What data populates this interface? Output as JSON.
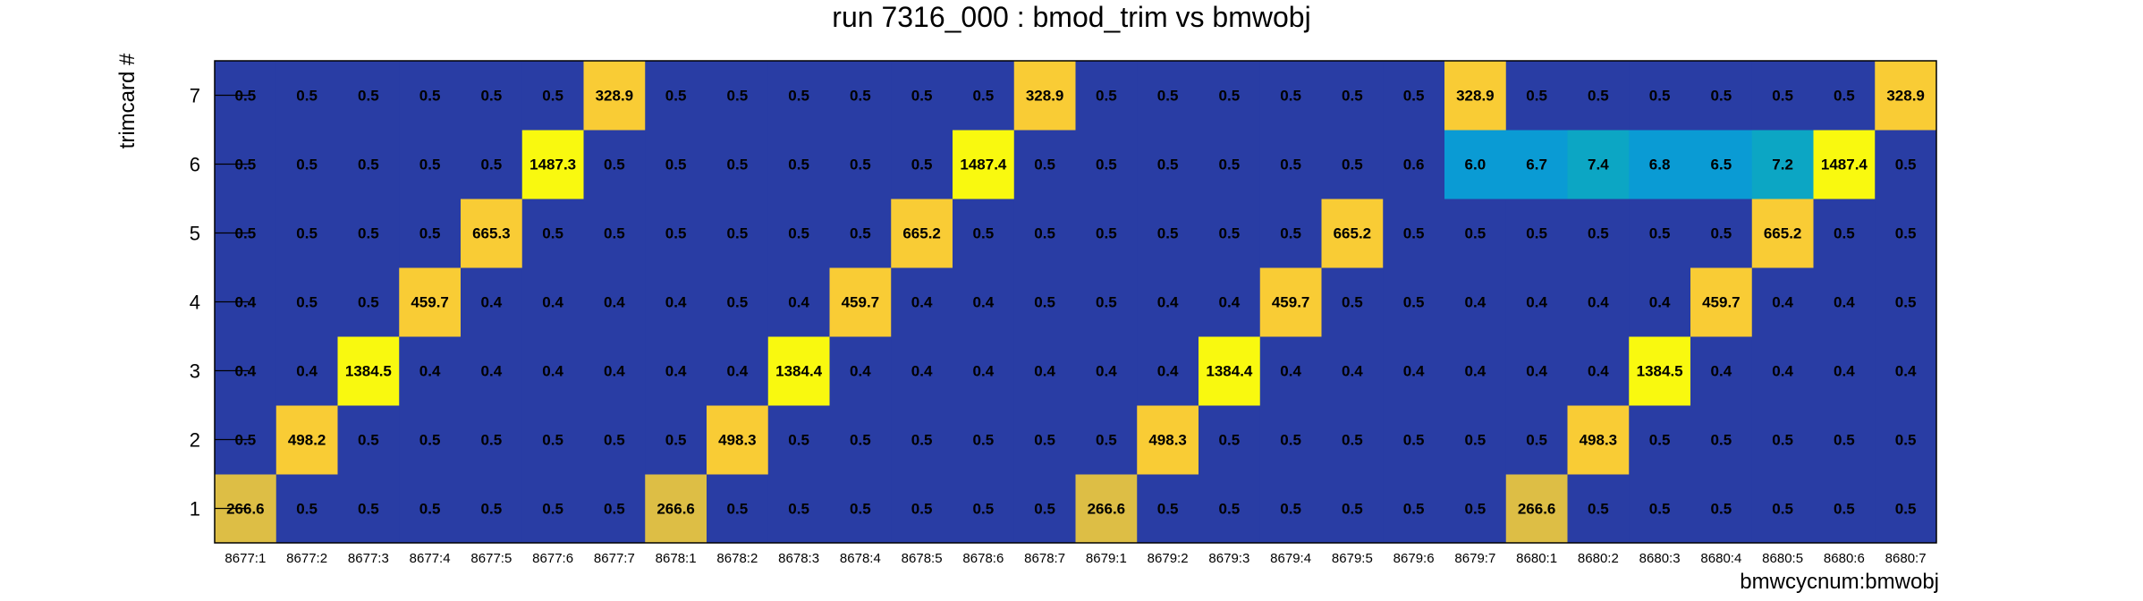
{
  "chart_data": {
    "type": "heatmap",
    "title": "run 7316_000 : bmod_trim vs bmwobj",
    "xlabel": "bmwcycnum:bmwobj",
    "ylabel": "trimcard #",
    "x_categories": [
      "8677:1",
      "8677:2",
      "8677:3",
      "8677:4",
      "8677:5",
      "8677:6",
      "8677:7",
      "8678:1",
      "8678:2",
      "8678:3",
      "8678:4",
      "8678:5",
      "8678:6",
      "8678:7",
      "8679:1",
      "8679:2",
      "8679:3",
      "8679:4",
      "8679:5",
      "8679:6",
      "8679:7",
      "8680:1",
      "8680:2",
      "8680:3",
      "8680:4",
      "8680:5",
      "8680:6",
      "8680:7"
    ],
    "y_categories": [
      "1",
      "2",
      "3",
      "4",
      "5",
      "6",
      "7"
    ],
    "values": [
      [
        "266.6",
        "0.5",
        "0.5",
        "0.5",
        "0.5",
        "0.5",
        "0.5",
        "266.6",
        "0.5",
        "0.5",
        "0.5",
        "0.5",
        "0.5",
        "0.5",
        "266.6",
        "0.5",
        "0.5",
        "0.5",
        "0.5",
        "0.5",
        "0.5",
        "266.6",
        "0.5",
        "0.5",
        "0.5",
        "0.5",
        "0.5",
        "0.5"
      ],
      [
        "0.5",
        "498.2",
        "0.5",
        "0.5",
        "0.5",
        "0.5",
        "0.5",
        "0.5",
        "498.3",
        "0.5",
        "0.5",
        "0.5",
        "0.5",
        "0.5",
        "0.5",
        "498.3",
        "0.5",
        "0.5",
        "0.5",
        "0.5",
        "0.5",
        "0.5",
        "498.3",
        "0.5",
        "0.5",
        "0.5",
        "0.5",
        "0.5"
      ],
      [
        "0.4",
        "0.4",
        "1384.5",
        "0.4",
        "0.4",
        "0.4",
        "0.4",
        "0.4",
        "0.4",
        "1384.4",
        "0.4",
        "0.4",
        "0.4",
        "0.4",
        "0.4",
        "0.4",
        "1384.4",
        "0.4",
        "0.4",
        "0.4",
        "0.4",
        "0.4",
        "0.4",
        "1384.5",
        "0.4",
        "0.4",
        "0.4",
        "0.4"
      ],
      [
        "0.4",
        "0.5",
        "0.5",
        "459.7",
        "0.4",
        "0.4",
        "0.4",
        "0.4",
        "0.5",
        "0.4",
        "459.7",
        "0.4",
        "0.4",
        "0.5",
        "0.5",
        "0.4",
        "0.4",
        "459.7",
        "0.5",
        "0.5",
        "0.4",
        "0.4",
        "0.4",
        "0.4",
        "459.7",
        "0.4",
        "0.4",
        "0.5"
      ],
      [
        "0.5",
        "0.5",
        "0.5",
        "0.5",
        "665.3",
        "0.5",
        "0.5",
        "0.5",
        "0.5",
        "0.5",
        "0.5",
        "665.2",
        "0.5",
        "0.5",
        "0.5",
        "0.5",
        "0.5",
        "0.5",
        "665.2",
        "0.5",
        "0.5",
        "0.5",
        "0.5",
        "0.5",
        "0.5",
        "665.2",
        "0.5",
        "0.5"
      ],
      [
        "0.5",
        "0.5",
        "0.5",
        "0.5",
        "0.5",
        "1487.3",
        "0.5",
        "0.5",
        "0.5",
        "0.5",
        "0.5",
        "0.5",
        "1487.4",
        "0.5",
        "0.5",
        "0.5",
        "0.5",
        "0.5",
        "0.5",
        "0.6",
        "6.0",
        "6.7",
        "7.4",
        "6.8",
        "6.5",
        "7.2",
        "1487.4",
        "0.5"
      ],
      [
        "0.5",
        "0.5",
        "0.5",
        "0.5",
        "0.5",
        "0.5",
        "328.9",
        "0.5",
        "0.5",
        "0.5",
        "0.5",
        "0.5",
        "0.5",
        "328.9",
        "0.5",
        "0.5",
        "0.5",
        "0.5",
        "0.5",
        "0.5",
        "328.9",
        "0.5",
        "0.5",
        "0.5",
        "0.5",
        "0.5",
        "0.5",
        "328.9"
      ]
    ],
    "grid": false,
    "legend": "none",
    "colors": {
      "background": "#293da4",
      "low_mid": "#0a9bd4",
      "mid": "#0ca6c4",
      "low_yellow": "#ddbe45",
      "mid_yellow": "#f9cc35",
      "high_yellow": "#f9f90f"
    }
  }
}
